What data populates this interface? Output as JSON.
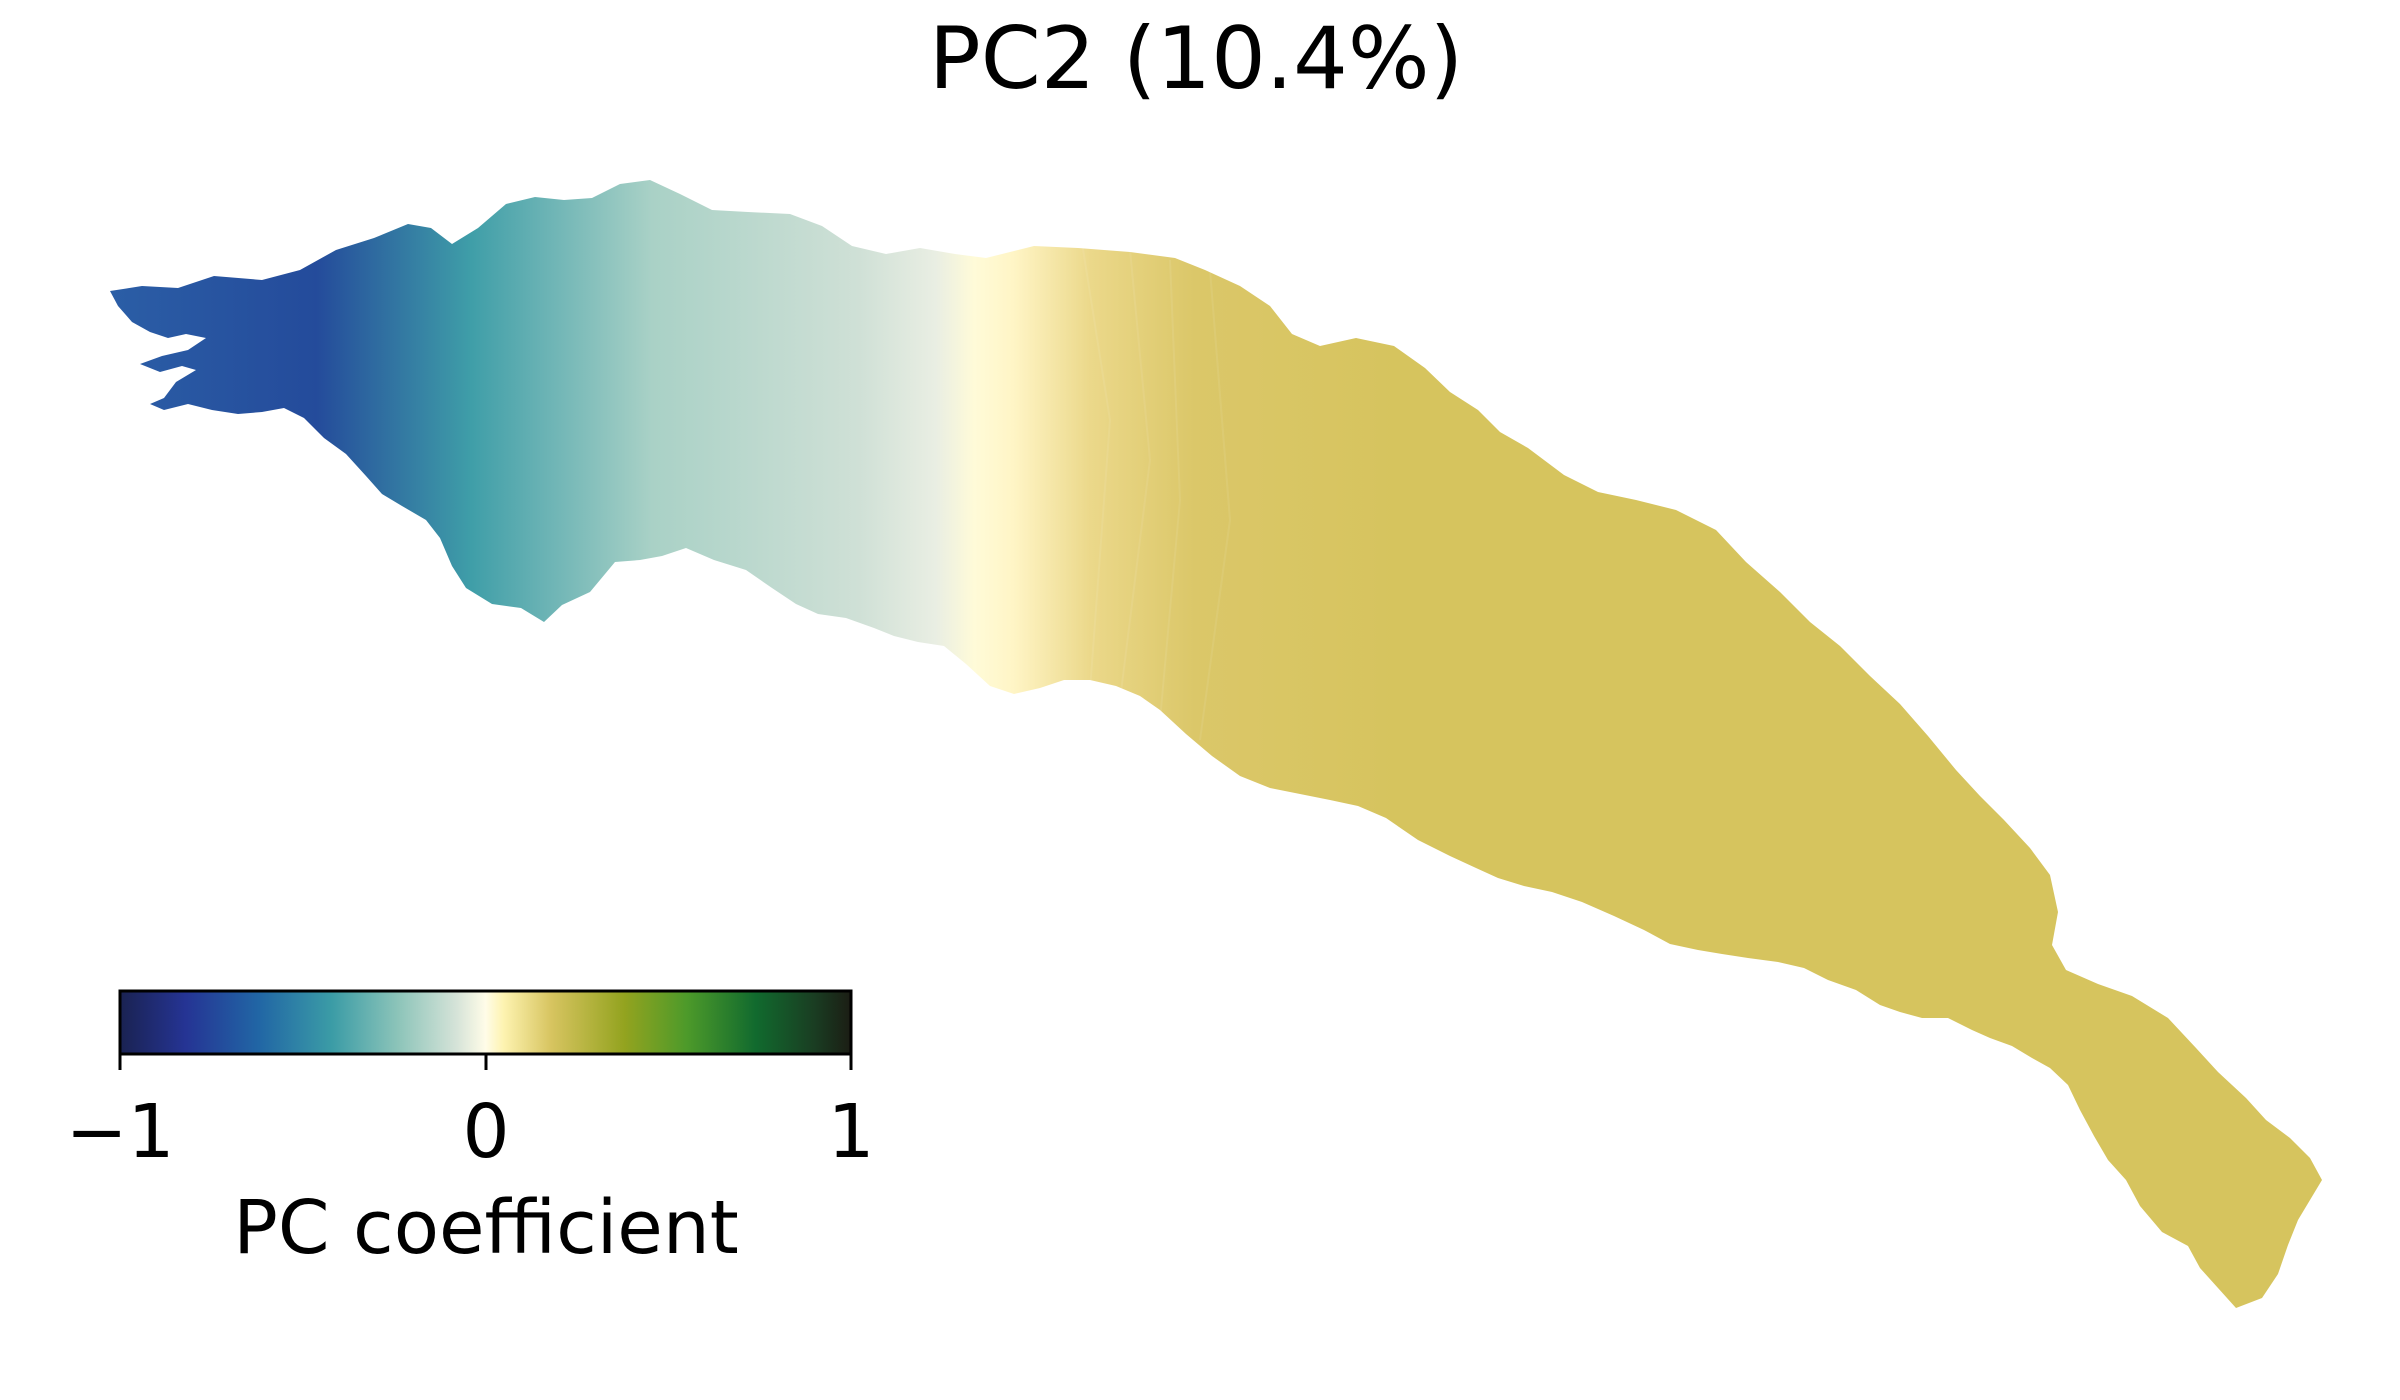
{
  "figure": {
    "title": "PC2 (10.4%)"
  },
  "map_data": {
    "type": "mesh-field",
    "variable": "PC coefficient",
    "field_trend": "strongly negative at the western head, rising through zero near the middle, moderately positive across the eastern half",
    "field_samples": [
      {
        "region": "west head",
        "value": -0.85
      },
      {
        "region": "west-central",
        "value": -0.45
      },
      {
        "region": "central",
        "value": -0.1
      },
      {
        "region": "middle",
        "value": 0.05
      },
      {
        "region": "east",
        "value": 0.18
      },
      {
        "region": "east tail",
        "value": 0.18
      }
    ]
  },
  "colorbar": {
    "label": "PC coefficient",
    "min": -1,
    "max": 1,
    "ticks": [
      "−1",
      "0",
      "1"
    ],
    "tick_values": [
      -1,
      0,
      1
    ],
    "colormap_stops": [
      {
        "value": -1.0,
        "color": "#1a2251"
      },
      {
        "value": -0.82,
        "color": "#253494"
      },
      {
        "value": -0.62,
        "color": "#2166a5"
      },
      {
        "value": -0.42,
        "color": "#3b9ca6"
      },
      {
        "value": -0.24,
        "color": "#8cc4b9"
      },
      {
        "value": -0.08,
        "color": "#d5e3d8"
      },
      {
        "value": 0.0,
        "color": "#fffce8"
      },
      {
        "value": 0.05,
        "color": "#fdf3b0"
      },
      {
        "value": 0.18,
        "color": "#d7c460"
      },
      {
        "value": 0.38,
        "color": "#93a31f"
      },
      {
        "value": 0.55,
        "color": "#4d9a2a"
      },
      {
        "value": 0.74,
        "color": "#116a2e"
      },
      {
        "value": 0.9,
        "color": "#1a3d22"
      },
      {
        "value": 1.0,
        "color": "#1b1d14"
      }
    ]
  }
}
